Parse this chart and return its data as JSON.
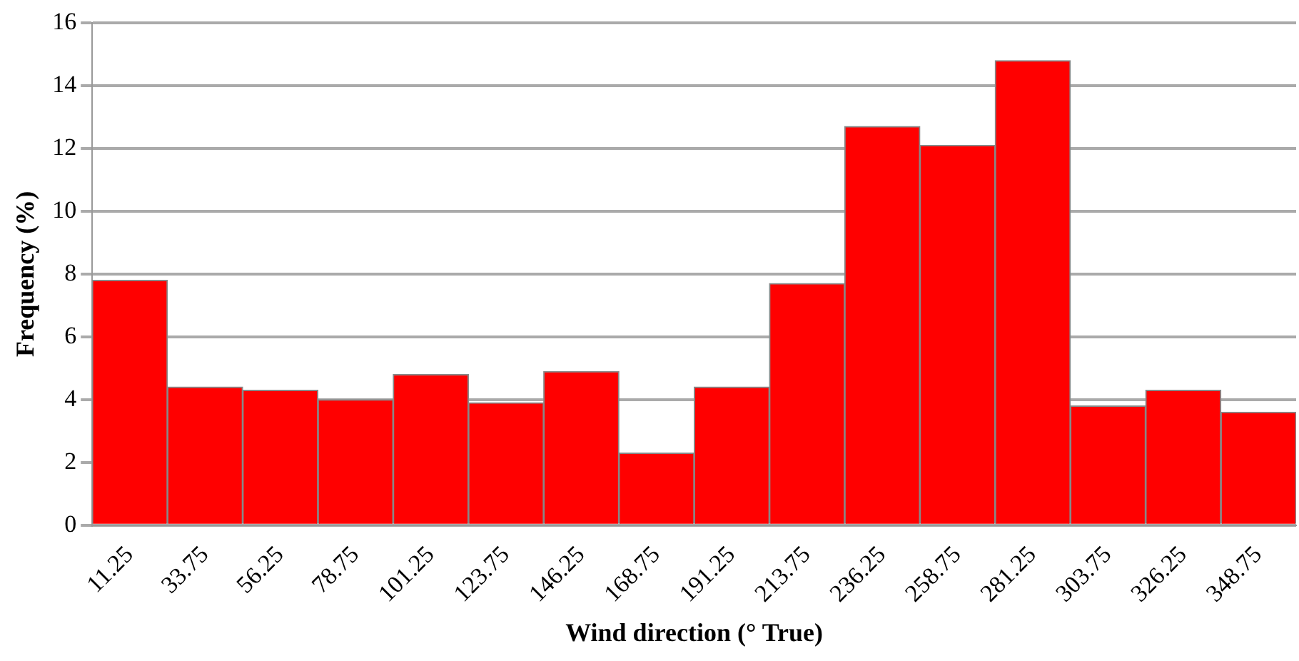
{
  "chart_data": {
    "type": "bar",
    "xlabel": "Wind direction (° True)",
    "ylabel": "Frequency (%)",
    "categories": [
      "11.25",
      "33.75",
      "56.25",
      "78.75",
      "101.25",
      "123.75",
      "146.25",
      "168.75",
      "191.25",
      "213.75",
      "236.25",
      "258.75",
      "281.25",
      "303.75",
      "326.25",
      "348.75"
    ],
    "values": [
      7.8,
      4.4,
      4.3,
      4.0,
      4.8,
      3.9,
      4.9,
      2.3,
      4.4,
      7.7,
      12.7,
      12.1,
      14.8,
      3.8,
      4.3,
      3.6
    ],
    "color": "#ff0000",
    "ylim": [
      0,
      16
    ],
    "yticks": [
      0,
      2,
      4,
      6,
      8,
      10,
      12,
      14,
      16
    ],
    "grid": "y",
    "legend": false
  }
}
